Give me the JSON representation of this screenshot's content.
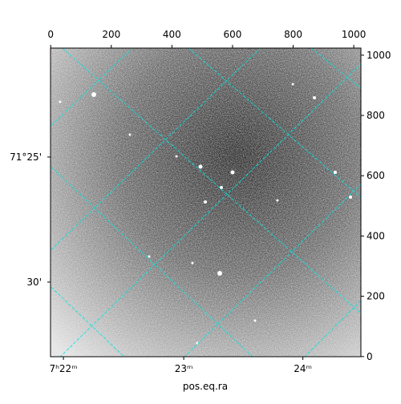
{
  "chart_data": {
    "type": "image",
    "xlabel": "pos.eq.ra",
    "xlim": [
      -0.5,
      1023.5
    ],
    "ylim": [
      -0.5,
      1023.5
    ],
    "xticks": [
      0,
      200,
      400,
      600,
      800,
      1000
    ],
    "yticks": [
      0,
      200,
      400,
      600,
      800,
      1000
    ],
    "ra_ticks": [
      {
        "value": 42,
        "label": "7ʰ22ᵐ"
      },
      {
        "value": 439,
        "label": "23ᵐ"
      },
      {
        "value": 832,
        "label": "24ᵐ"
      }
    ],
    "dec_ticks": [
      {
        "value": 662,
        "label": "71°25'"
      },
      {
        "value": 247,
        "label": "30'"
      }
    ],
    "grid_color": "#00e5e5"
  }
}
